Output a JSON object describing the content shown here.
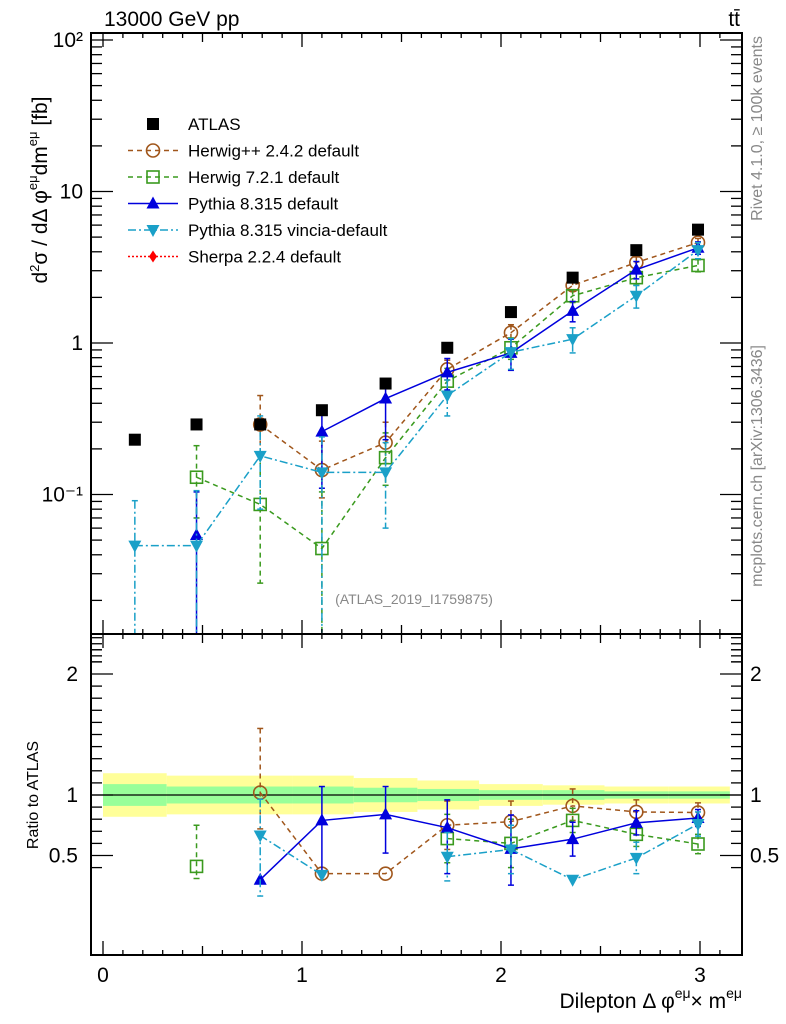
{
  "header": {
    "left": "13000 GeV pp",
    "right": "tt̄"
  },
  "side_text": {
    "rivet": "Rivet 4.1.0, ≥ 100k events",
    "mcplots": "mcplots.cern.ch [arXiv:1306.3436]"
  },
  "analysis_tag": "(ATLAS_2019_I1759875)",
  "chart_data": [
    {
      "type": "scatter",
      "panel": "main",
      "title": "13000 GeV pp",
      "ylabel": "d²σ / dΔφ^{eμ}dm^{eμ} [fb]",
      "xlabel": "",
      "yscale": "log",
      "ylim": [
        0.012,
        110
      ],
      "xlim": [
        -0.06,
        3.2
      ],
      "yticks": [
        {
          "value": 100,
          "label": "10²"
        },
        {
          "value": 10,
          "label": "10"
        },
        {
          "value": 1,
          "label": "1"
        },
        {
          "value": 0.1,
          "label": "10⁻¹"
        }
      ],
      "legend_position": "top-left",
      "x": [
        0.16,
        0.47,
        0.79,
        1.1,
        1.42,
        1.73,
        2.05,
        2.36,
        2.68,
        2.99
      ],
      "series": [
        {
          "name": "ATLAS",
          "color": "#000000",
          "marker": "square-filled",
          "line": "none",
          "values": [
            0.23,
            0.29,
            0.29,
            0.36,
            0.54,
            0.93,
            1.6,
            2.7,
            4.1,
            5.6
          ]
        },
        {
          "name": "Herwig++ 2.4.2 default",
          "color": "#a0561b",
          "marker": "circle-open",
          "line": "dashed",
          "values": [
            null,
            null,
            0.29,
            0.145,
            0.22,
            0.67,
            1.17,
            2.4,
            3.4,
            4.6
          ],
          "err_lo": [
            null,
            null,
            0.1,
            0.05,
            0.06,
            0.1,
            0.15,
            0.2,
            0.3,
            0.3
          ],
          "err_hi": [
            null,
            null,
            0.16,
            0.08,
            0.08,
            0.1,
            0.15,
            0.2,
            0.3,
            0.3
          ]
        },
        {
          "name": "Herwig 7.2.1 default",
          "color": "#3a9a1e",
          "marker": "square-open",
          "line": "dashed",
          "values": [
            null,
            0.13,
            0.086,
            0.044,
            0.175,
            0.56,
            0.93,
            2.05,
            2.7,
            3.25
          ],
          "err_lo": [
            null,
            0.06,
            0.06,
            0.044,
            0.06,
            0.1,
            0.15,
            0.2,
            0.3,
            0.3
          ],
          "err_hi": [
            null,
            0.08,
            0.1,
            0.06,
            0.08,
            0.12,
            0.15,
            0.2,
            0.3,
            0.3
          ]
        },
        {
          "name": "Pythia 8.315 default",
          "color": "#0000dd",
          "marker": "triangle-up",
          "line": "solid",
          "values": [
            null,
            0.054,
            null,
            0.26,
            0.43,
            0.64,
            0.86,
            1.63,
            3.05,
            4.25
          ],
          "err_lo": [
            null,
            0.054,
            null,
            0.15,
            0.2,
            0.15,
            0.2,
            0.25,
            0.4,
            0.4
          ],
          "err_hi": [
            null,
            0.05,
            null,
            0.12,
            0.15,
            0.15,
            0.2,
            0.25,
            0.4,
            0.4
          ]
        },
        {
          "name": "Pythia 8.315 vincia-default",
          "color": "#1aa0c8",
          "marker": "triangle-down",
          "line": "dashdot",
          "values": [
            0.046,
            0.046,
            0.18,
            0.14,
            0.14,
            0.45,
            0.87,
            1.06,
            2.05,
            4.1
          ],
          "err_lo": [
            0.046,
            0.046,
            0.1,
            0.14,
            0.08,
            0.12,
            0.2,
            0.2,
            0.35,
            0.5
          ],
          "err_hi": [
            0.045,
            0.06,
            0.15,
            0.1,
            0.08,
            0.12,
            0.2,
            0.2,
            0.35,
            0.5
          ]
        },
        {
          "name": "Sherpa 2.2.4 default",
          "color": "#ff0000",
          "marker": "diamond",
          "line": "dotted",
          "values": [
            null,
            null,
            null,
            null,
            null,
            null,
            null,
            null,
            null,
            null
          ]
        }
      ]
    },
    {
      "type": "scatter",
      "panel": "ratio",
      "ylabel": "Ratio to ATLAS",
      "xlabel": "Dilepton Δφ^{eμ}× m^{eμ}",
      "xlim": [
        -0.06,
        3.2
      ],
      "ylim": [
        0.34,
        2.33
      ],
      "xticks": [
        0,
        1,
        2,
        3
      ],
      "yticks": [
        0.5,
        1,
        2
      ],
      "bands": {
        "edges": [
          0.0,
          0.32,
          0.95,
          1.26,
          1.58,
          1.89,
          2.21,
          2.52,
          2.84,
          3.15
        ],
        "inner_lo": [
          0.91,
          0.93,
          0.93,
          0.94,
          0.95,
          0.96,
          0.96,
          0.97,
          0.97
        ],
        "inner_hi": [
          1.09,
          1.07,
          1.07,
          1.06,
          1.05,
          1.04,
          1.04,
          1.03,
          1.03
        ],
        "outer_lo": [
          0.82,
          0.84,
          0.84,
          0.86,
          0.88,
          0.91,
          0.92,
          0.93,
          0.93
        ],
        "outer_hi": [
          1.18,
          1.16,
          1.16,
          1.14,
          1.12,
          1.09,
          1.08,
          1.07,
          1.07
        ],
        "inner_color": "#99ff99",
        "outer_color": "#ffff99"
      },
      "x": [
        0.16,
        0.47,
        0.79,
        1.1,
        1.42,
        1.73,
        2.05,
        2.36,
        2.68,
        2.99
      ],
      "series": [
        {
          "name": "Herwig++ 2.4.2 default",
          "values": [
            null,
            null,
            1.02,
            0.35,
            0.35,
            0.75,
            0.78,
            0.91,
            0.86,
            0.855
          ],
          "err_lo": [
            null,
            null,
            0.3,
            null,
            null,
            0.2,
            0.2,
            0.12,
            0.1,
            0.08
          ],
          "err_hi": [
            null,
            null,
            0.53,
            null,
            null,
            0.2,
            0.17,
            0.14,
            0.1,
            0.08
          ]
        },
        {
          "name": "Herwig 7.2.1 default",
          "values": [
            null,
            0.41,
            null,
            null,
            null,
            0.64,
            0.6,
            0.79,
            0.675,
            0.595
          ],
          "err_lo": [
            null,
            0.1,
            null,
            null,
            null,
            0.2,
            0.2,
            0.1,
            0.1,
            0.08
          ],
          "err_hi": [
            null,
            0.34,
            null,
            null,
            null,
            0.2,
            0.2,
            0.1,
            0.1,
            0.08
          ]
        },
        {
          "name": "Pythia 8.315 default",
          "values": [
            null,
            null,
            0.3,
            0.79,
            0.84,
            0.73,
            0.555,
            0.635,
            0.77,
            0.81
          ],
          "err_lo": [
            null,
            null,
            null,
            0.45,
            0.32,
            0.38,
            0.3,
            0.14,
            0.1,
            0.07
          ],
          "err_hi": [
            null,
            null,
            null,
            0.28,
            0.23,
            0.23,
            0.28,
            0.14,
            0.1,
            0.07
          ]
        },
        {
          "name": "Pythia 8.315 vincia-default",
          "values": [
            null,
            null,
            0.665,
            0.34,
            null,
            0.49,
            0.55,
            0.3,
            0.48,
            0.76
          ],
          "err_lo": [
            null,
            null,
            0.5,
            null,
            null,
            0.2,
            0.2,
            null,
            0.13,
            0.1
          ],
          "err_hi": [
            null,
            null,
            0.3,
            null,
            null,
            0.2,
            0.2,
            null,
            0.13,
            0.1
          ]
        }
      ]
    }
  ]
}
